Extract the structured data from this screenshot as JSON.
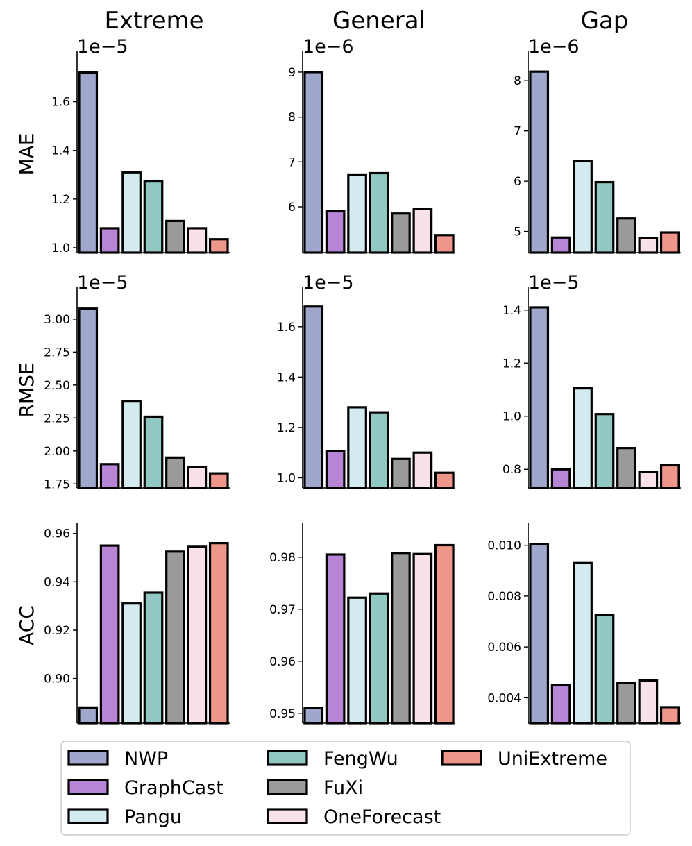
{
  "column_titles": [
    "Extreme",
    "General",
    "Gap"
  ],
  "row_labels": [
    "MAE",
    "RMSE",
    "ACC"
  ],
  "legend": {
    "items": [
      {
        "name": "NWP",
        "color": "#9fa8cc"
      },
      {
        "name": "GraphCast",
        "color": "#b784d6"
      },
      {
        "name": "Pangu",
        "color": "#d3ebf0"
      },
      {
        "name": "FengWu",
        "color": "#92c8c4"
      },
      {
        "name": "FuXi",
        "color": "#9a9a9a"
      },
      {
        "name": "OneForecast",
        "color": "#f8e1ea"
      },
      {
        "name": "UniExtreme",
        "color": "#ee968a"
      }
    ]
  },
  "chart_data": [
    {
      "type": "bar",
      "metric": "MAE",
      "column": "Extreme",
      "exponent_label": "1e−5",
      "scale": 1e-05,
      "categories": [
        "NWP",
        "GraphCast",
        "Pangu",
        "FengWu",
        "FuXi",
        "OneForecast",
        "UniExtreme"
      ],
      "values": [
        1.72e-05,
        1.08e-05,
        1.31e-05,
        1.275e-05,
        1.11e-05,
        1.08e-05,
        1.035e-05
      ],
      "ylim": [
        9.8e-06,
        1.79e-05
      ],
      "ticks": [
        {
          "v": 1.0,
          "label": "1.0"
        },
        {
          "v": 1.2,
          "label": "1.2"
        },
        {
          "v": 1.4,
          "label": "1.4"
        },
        {
          "v": 1.6,
          "label": "1.6"
        }
      ]
    },
    {
      "type": "bar",
      "metric": "MAE",
      "column": "General",
      "exponent_label": "1e−6",
      "scale": 1e-06,
      "categories": [
        "NWP",
        "GraphCast",
        "Pangu",
        "FengWu",
        "FuXi",
        "OneForecast",
        "UniExtreme"
      ],
      "values": [
        9e-06,
        5.9e-06,
        6.72e-06,
        6.75e-06,
        5.85e-06,
        5.95e-06,
        5.37e-06
      ],
      "ylim": [
        4.98e-06,
        9.37e-06
      ],
      "ticks": [
        {
          "v": 6,
          "label": "6"
        },
        {
          "v": 7,
          "label": "7"
        },
        {
          "v": 8,
          "label": "8"
        },
        {
          "v": 9,
          "label": "9"
        }
      ]
    },
    {
      "type": "bar",
      "metric": "MAE",
      "column": "Gap",
      "exponent_label": "1e−6",
      "scale": 1e-06,
      "categories": [
        "NWP",
        "GraphCast",
        "Pangu",
        "FengWu",
        "FuXi",
        "OneForecast",
        "UniExtreme"
      ],
      "values": [
        8.18e-06,
        4.88e-06,
        6.4e-06,
        5.98e-06,
        5.26e-06,
        4.87e-06,
        4.98e-06
      ],
      "ylim": [
        4.58e-06,
        8.5e-06
      ],
      "ticks": [
        {
          "v": 5,
          "label": "5"
        },
        {
          "v": 6,
          "label": "6"
        },
        {
          "v": 7,
          "label": "7"
        },
        {
          "v": 8,
          "label": "8"
        }
      ]
    },
    {
      "type": "bar",
      "metric": "RMSE",
      "column": "Extreme",
      "exponent_label": "1e−5",
      "scale": 1e-05,
      "categories": [
        "NWP",
        "GraphCast",
        "Pangu",
        "FengWu",
        "FuXi",
        "OneForecast",
        "UniExtreme"
      ],
      "values": [
        3.08e-05,
        1.9e-05,
        2.38e-05,
        2.26e-05,
        1.95e-05,
        1.88e-05,
        1.83e-05
      ],
      "ylim": [
        1.72e-05,
        3.21e-05
      ],
      "ticks": [
        {
          "v": 1.75,
          "label": "1.75"
        },
        {
          "v": 2.0,
          "label": "2.00"
        },
        {
          "v": 2.25,
          "label": "2.25"
        },
        {
          "v": 2.5,
          "label": "2.50"
        },
        {
          "v": 2.75,
          "label": "2.75"
        },
        {
          "v": 3.0,
          "label": "3.00"
        }
      ]
    },
    {
      "type": "bar",
      "metric": "RMSE",
      "column": "General",
      "exponent_label": "1e−5",
      "scale": 1e-05,
      "categories": [
        "NWP",
        "GraphCast",
        "Pangu",
        "FengWu",
        "FuXi",
        "OneForecast",
        "UniExtreme"
      ],
      "values": [
        1.68e-05,
        1.105e-05,
        1.28e-05,
        1.26e-05,
        1.075e-05,
        1.1e-05,
        1.02e-05
      ],
      "ylim": [
        9.6e-06,
        1.74e-05
      ],
      "ticks": [
        {
          "v": 1.0,
          "label": "1.0"
        },
        {
          "v": 1.2,
          "label": "1.2"
        },
        {
          "v": 1.4,
          "label": "1.4"
        },
        {
          "v": 1.6,
          "label": "1.6"
        }
      ]
    },
    {
      "type": "bar",
      "metric": "RMSE",
      "column": "Gap",
      "exponent_label": "1e−5",
      "scale": 1e-05,
      "categories": [
        "NWP",
        "GraphCast",
        "Pangu",
        "FengWu",
        "FuXi",
        "OneForecast",
        "UniExtreme"
      ],
      "values": [
        1.41e-05,
        8e-06,
        1.105e-05,
        1.008e-05,
        8.8e-06,
        7.9e-06,
        8.15e-06
      ],
      "ylim": [
        7.3e-06,
        1.47e-05
      ],
      "ticks": [
        {
          "v": 0.8,
          "label": "0.8"
        },
        {
          "v": 1.0,
          "label": "1.0"
        },
        {
          "v": 1.2,
          "label": "1.2"
        },
        {
          "v": 1.4,
          "label": "1.4"
        }
      ]
    },
    {
      "type": "bar",
      "metric": "ACC",
      "column": "Extreme",
      "exponent_label": "",
      "scale": 1,
      "categories": [
        "NWP",
        "GraphCast",
        "Pangu",
        "FengWu",
        "FuXi",
        "OneForecast",
        "UniExtreme"
      ],
      "values": [
        0.888,
        0.955,
        0.931,
        0.9355,
        0.9525,
        0.9545,
        0.956
      ],
      "ylim": [
        0.8815,
        0.9625
      ],
      "ticks": [
        {
          "v": 0.9,
          "label": "0.90"
        },
        {
          "v": 0.92,
          "label": "0.92"
        },
        {
          "v": 0.94,
          "label": "0.94"
        },
        {
          "v": 0.96,
          "label": "0.96"
        }
      ]
    },
    {
      "type": "bar",
      "metric": "ACC",
      "column": "General",
      "exponent_label": "",
      "scale": 1,
      "categories": [
        "NWP",
        "GraphCast",
        "Pangu",
        "FengWu",
        "FuXi",
        "OneForecast",
        "UniExtreme"
      ],
      "values": [
        0.951,
        0.9805,
        0.9722,
        0.973,
        0.9808,
        0.9806,
        0.9823
      ],
      "ylim": [
        0.9481,
        0.9857
      ],
      "ticks": [
        {
          "v": 0.95,
          "label": "0.95"
        },
        {
          "v": 0.96,
          "label": "0.96"
        },
        {
          "v": 0.97,
          "label": "0.97"
        },
        {
          "v": 0.98,
          "label": "0.98"
        }
      ]
    },
    {
      "type": "bar",
      "metric": "ACC",
      "column": "Gap",
      "exponent_label": "",
      "scale": 1,
      "categories": [
        "NWP",
        "GraphCast",
        "Pangu",
        "FengWu",
        "FuXi",
        "OneForecast",
        "UniExtreme"
      ],
      "values": [
        0.01005,
        0.0045,
        0.0093,
        0.00725,
        0.00458,
        0.00468,
        0.00363
      ],
      "ylim": [
        0.003,
        0.0107
      ],
      "ticks": [
        {
          "v": 0.004,
          "label": "0.004"
        },
        {
          "v": 0.006,
          "label": "0.006"
        },
        {
          "v": 0.008,
          "label": "0.008"
        },
        {
          "v": 0.01,
          "label": "0.010"
        }
      ]
    }
  ]
}
